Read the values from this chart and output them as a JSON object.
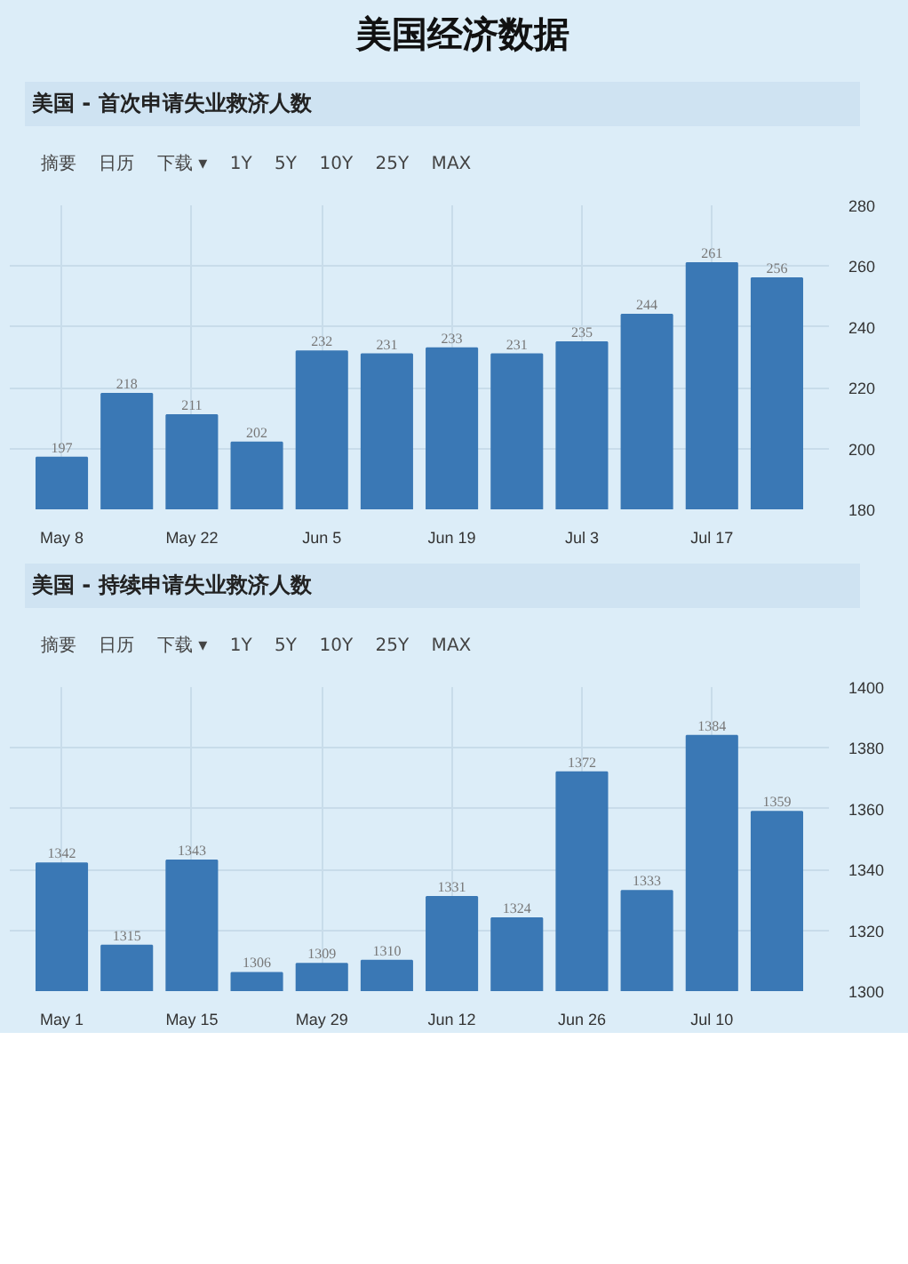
{
  "chart_data": [
    {
      "type": "bar",
      "title": "美国经济数据",
      "subtitle": "美国 - 首次申请失业救济人数",
      "annotations": [
        "摘要",
        "日历",
        "下载 ▾",
        "1Y",
        "5Y",
        "10Y",
        "25Y",
        "MAX"
      ],
      "categories": [
        "May 8",
        null,
        "May 22",
        null,
        "Jun 5",
        null,
        "Jun 19",
        null,
        "Jul 3",
        null,
        "Jul 17",
        null
      ],
      "values": [
        197,
        218,
        211,
        202,
        232,
        231,
        233,
        231,
        235,
        244,
        261,
        256
      ],
      "color": "#3a78b5",
      "data_labels": true,
      "ylim": [
        180,
        280
      ],
      "yticks": [
        180,
        200,
        220,
        240,
        260,
        280
      ],
      "grid": true
    },
    {
      "type": "bar",
      "subtitle": "美国 - 持续申请失业救济人数",
      "annotations": [
        "摘要",
        "日历",
        "下载 ▾",
        "1Y",
        "5Y",
        "10Y",
        "25Y",
        "MAX"
      ],
      "categories": [
        "May 1",
        null,
        "May 15",
        null,
        "May 29",
        null,
        "Jun 12",
        null,
        "Jun 26",
        null,
        "Jul 10",
        null
      ],
      "values": [
        1342,
        1315,
        1343,
        1306,
        1309,
        1310,
        1331,
        1324,
        1372,
        1333,
        1384,
        1359
      ],
      "color": "#3a78b5",
      "data_labels": true,
      "ylim": [
        1300,
        1400
      ],
      "yticks": [
        1300,
        1320,
        1340,
        1360,
        1380,
        1400
      ],
      "grid": true
    }
  ]
}
